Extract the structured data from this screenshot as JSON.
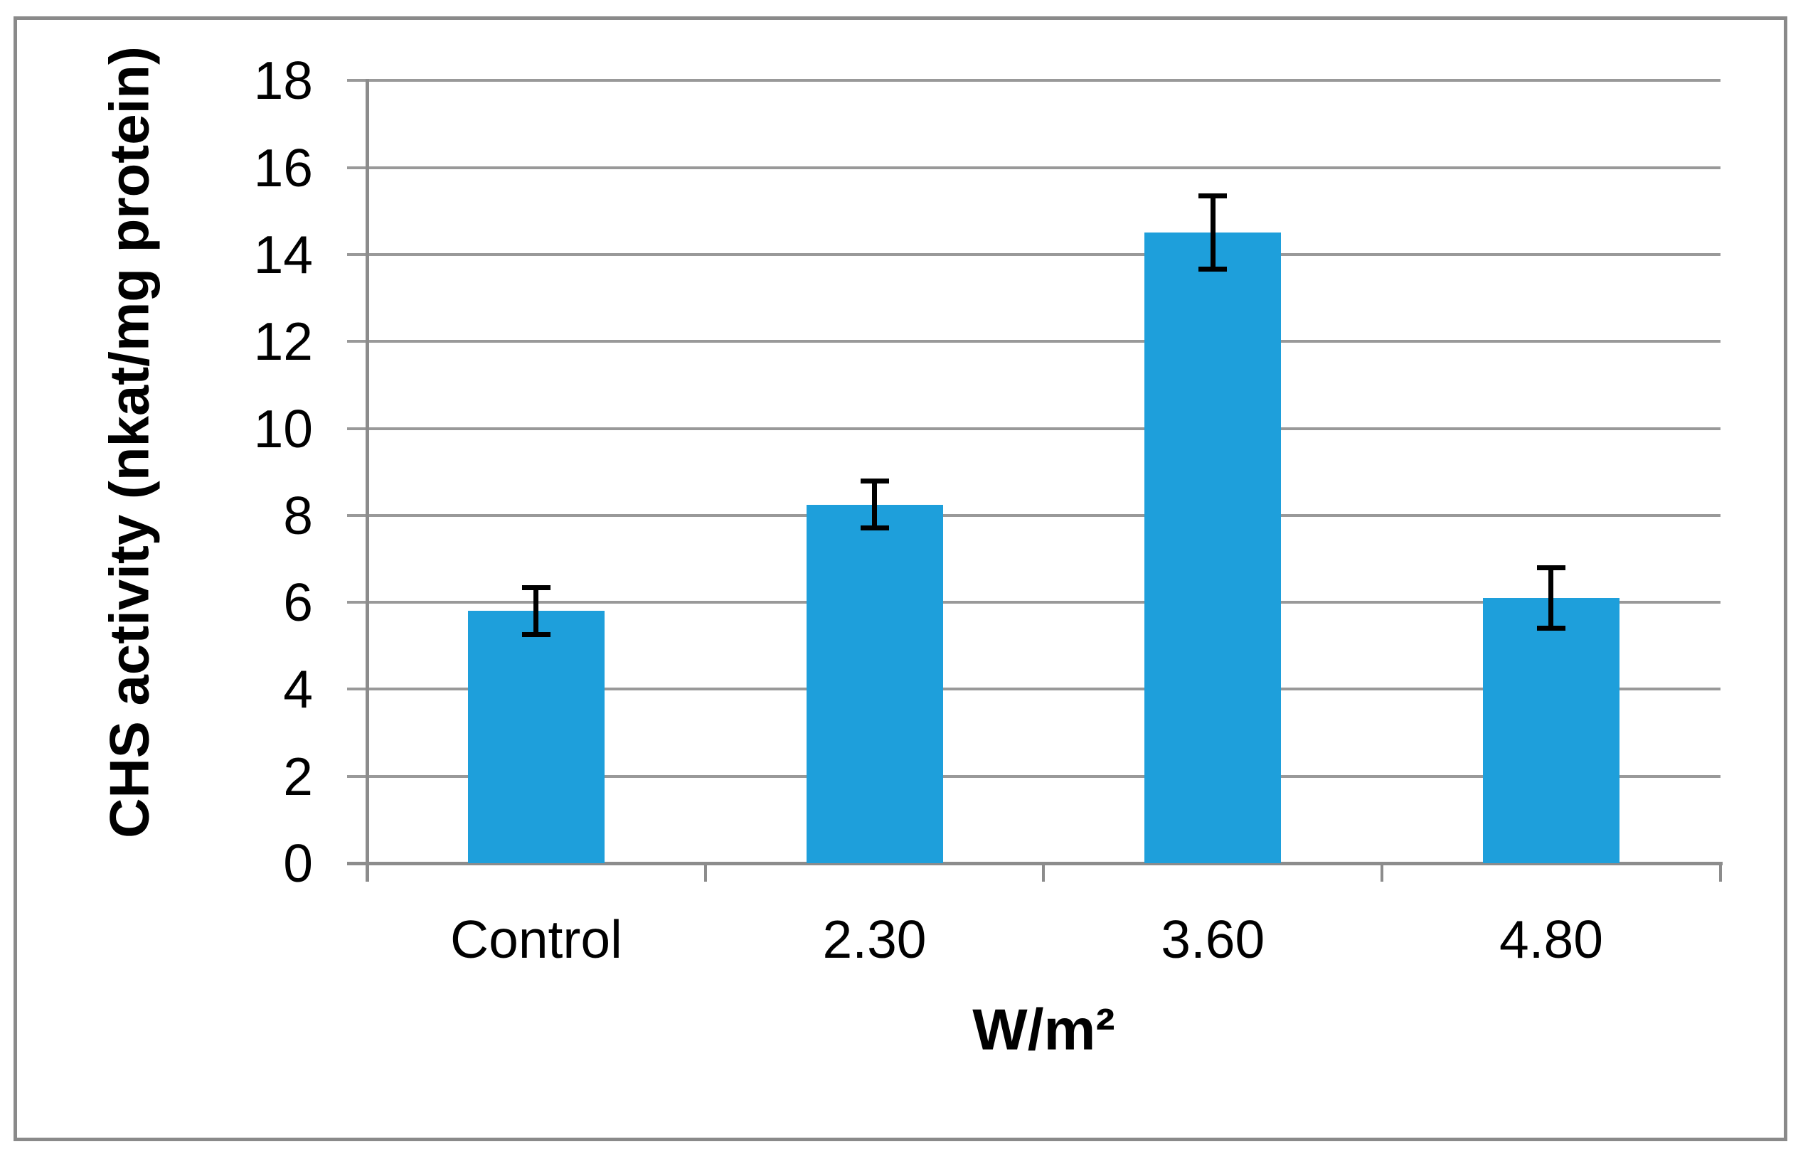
{
  "chart_data": {
    "type": "bar",
    "title": "",
    "categories": [
      "Control",
      "2.30",
      "3.60",
      "4.80"
    ],
    "values": [
      5.8,
      8.25,
      14.5,
      6.1
    ],
    "errors": [
      0.55,
      0.55,
      0.85,
      0.7
    ],
    "xlabel": "W/m²",
    "ylabel": "CHS activity (nkat/mg protein)",
    "ylim": [
      0,
      18
    ],
    "yticks": [
      0,
      2,
      4,
      6,
      8,
      10,
      12,
      14,
      16,
      18
    ],
    "grid": true,
    "legend": false,
    "bar_color": "#1e9fdb",
    "gridline_color": "#999999",
    "axis_color": "#8c8c8c",
    "error_color": "#000000",
    "frame_color": "#8a8a8a"
  }
}
